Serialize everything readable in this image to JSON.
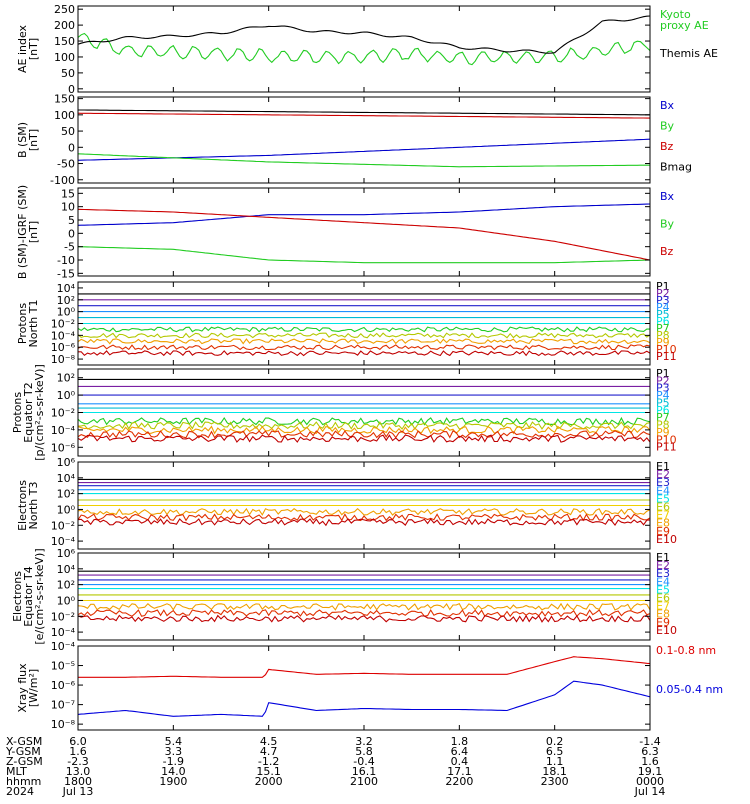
{
  "chart_data": [
    {
      "type": "line",
      "ylabel": "AE index\n[nT]",
      "ylim": [
        -10,
        260
      ],
      "yticks": [
        0,
        50,
        100,
        150,
        200,
        250
      ],
      "yticklabels": [
        "0",
        "50",
        "100",
        "150",
        "200",
        "250"
      ],
      "log": false,
      "x_hours": [
        18.0,
        18.5,
        19.0,
        19.5,
        20.0,
        20.5,
        21.0,
        21.5,
        22.0,
        22.5,
        23.0,
        23.5,
        24.0
      ],
      "series": [
        {
          "name": "Kyoto\nproxy AE",
          "color": "#22cc22",
          "y": [
            160,
            120,
            115,
            110,
            105,
            100,
            100,
            110,
            95,
            100,
            100,
            120,
            140
          ]
        },
        {
          "name": "Themis AE",
          "color": "#000000",
          "y": [
            140,
            160,
            165,
            175,
            200,
            180,
            175,
            160,
            130,
            120,
            115,
            210,
            225
          ]
        }
      ]
    },
    {
      "type": "line",
      "ylabel": "B (SM)\n[nT]",
      "ylim": [
        -110,
        155
      ],
      "yticks": [
        -100,
        -50,
        0,
        50,
        100,
        150
      ],
      "yticklabels": [
        "-100",
        "-50",
        "0",
        "50",
        "100",
        "150"
      ],
      "log": false,
      "x_hours": [
        18.0,
        20.0,
        22.0,
        24.0
      ],
      "series": [
        {
          "name": "Bx",
          "color": "#0000cc",
          "y": [
            -40,
            -25,
            0,
            25
          ]
        },
        {
          "name": "By",
          "color": "#22cc22",
          "y": [
            -20,
            -45,
            -60,
            -55
          ]
        },
        {
          "name": "Bz",
          "color": "#cc0000",
          "y": [
            105,
            100,
            95,
            90
          ]
        },
        {
          "name": "Bmag",
          "color": "#000000",
          "y": [
            115,
            110,
            105,
            100
          ]
        }
      ]
    },
    {
      "type": "line",
      "ylabel": "B (SM)-IGRF (SM)\n[nT]",
      "ylim": [
        -16,
        17
      ],
      "yticks": [
        -15,
        -10,
        -5,
        0,
        5,
        10,
        15
      ],
      "yticklabels": [
        "-15",
        "-10",
        "-5",
        "0",
        "5",
        "10",
        "15"
      ],
      "log": false,
      "x_hours": [
        18.0,
        19.0,
        20.0,
        21.0,
        22.0,
        23.0,
        24.0
      ],
      "series": [
        {
          "name": "Bx",
          "color": "#0000cc",
          "y": [
            3,
            4,
            7,
            7,
            8,
            10,
            11
          ]
        },
        {
          "name": "By",
          "color": "#22cc22",
          "y": [
            -5,
            -6,
            -10,
            -11,
            -11,
            -11,
            -10
          ]
        },
        {
          "name": "Bz",
          "color": "#cc0000",
          "y": [
            9,
            8,
            6,
            4,
            2,
            -3,
            -10
          ]
        }
      ]
    },
    {
      "type": "line",
      "ylabel": "Protons\nNorth T1",
      "ylim": [
        -9,
        5
      ],
      "yticks": [
        -8,
        -6,
        -4,
        -2,
        0,
        2,
        4
      ],
      "yticklabels": [
        "10⁻⁸",
        "10⁻⁶",
        "10⁻⁴",
        "10⁻²",
        "10⁰",
        "10²",
        "10⁴"
      ],
      "log": true,
      "x_hours": [
        18.0,
        24.0
      ],
      "series": [
        {
          "name": "P1",
          "color": "#000000",
          "y": [
            3,
            3
          ]
        },
        {
          "name": "P2",
          "color": "#7a1fa2",
          "y": [
            2,
            2
          ]
        },
        {
          "name": "P3",
          "color": "#2222cc",
          "y": [
            1,
            1
          ]
        },
        {
          "name": "P4",
          "color": "#1e90ff",
          "y": [
            0,
            0
          ]
        },
        {
          "name": "P5",
          "color": "#00bcd4",
          "y": [
            -1,
            -1
          ]
        },
        {
          "name": "P6",
          "color": "#00e5e5",
          "y": [
            -2,
            -2
          ]
        },
        {
          "name": "P7",
          "color": "#22cc22",
          "y": [
            -3,
            -3
          ]
        },
        {
          "name": "P8",
          "color": "#b5c800",
          "y": [
            -4,
            -4
          ]
        },
        {
          "name": "P9",
          "color": "#f0a000",
          "y": [
            -5,
            -5
          ]
        },
        {
          "name": "P10",
          "color": "#e03000",
          "y": [
            -6,
            -6
          ]
        },
        {
          "name": "P11",
          "color": "#c00000",
          "y": [
            -7,
            -7
          ]
        }
      ]
    },
    {
      "type": "line",
      "ylabel": "Protons\nEquator T2\n[p/(cm²-s-sr-keV)]",
      "ylim": [
        -7,
        3
      ],
      "yticks": [
        -6,
        -4,
        -2,
        0,
        2
      ],
      "yticklabels": [
        "10⁻⁶",
        "10⁻⁴",
        "10⁻²",
        "10⁰",
        "10²"
      ],
      "log": true,
      "x_hours": [
        18.0,
        24.0
      ],
      "series": [
        {
          "name": "P1",
          "color": "#000000",
          "y": [
            1.8,
            1.8
          ]
        },
        {
          "name": "P2",
          "color": "#7a1fa2",
          "y": [
            1,
            1
          ]
        },
        {
          "name": "P3",
          "color": "#2222cc",
          "y": [
            0,
            0
          ]
        },
        {
          "name": "P4",
          "color": "#1e90ff",
          "y": [
            -1,
            -1
          ]
        },
        {
          "name": "P5",
          "color": "#00bcd4",
          "y": [
            -1.5,
            -1.5
          ]
        },
        {
          "name": "P6",
          "color": "#00e5e5",
          "y": [
            -2,
            -2
          ]
        },
        {
          "name": "P7",
          "color": "#22cc22",
          "y": [
            -3,
            -3
          ]
        },
        {
          "name": "P8",
          "color": "#b5c800",
          "y": [
            -3.5,
            -3.5
          ]
        },
        {
          "name": "P9",
          "color": "#f0a000",
          "y": [
            -4,
            -4
          ]
        },
        {
          "name": "P10",
          "color": "#e03000",
          "y": [
            -4.5,
            -4.5
          ]
        },
        {
          "name": "P11",
          "color": "#c00000",
          "y": [
            -5,
            -5
          ]
        }
      ]
    },
    {
      "type": "line",
      "ylabel": "Electrons\nNorth T3",
      "ylim": [
        -5,
        6
      ],
      "yticks": [
        -4,
        -2,
        0,
        2,
        4,
        6
      ],
      "yticklabels": [
        "10⁻⁴",
        "10⁻²",
        "10⁰",
        "10²",
        "10⁴",
        "10⁶"
      ],
      "log": true,
      "x_hours": [
        18.0,
        24.0
      ],
      "series": [
        {
          "name": "E1",
          "color": "#000000",
          "y": [
            3.8,
            3.8
          ]
        },
        {
          "name": "E2",
          "color": "#7a1fa2",
          "y": [
            3.4,
            3.4
          ]
        },
        {
          "name": "E3",
          "color": "#2222cc",
          "y": [
            3,
            3
          ]
        },
        {
          "name": "E4",
          "color": "#1e90ff",
          "y": [
            2.5,
            2.5
          ]
        },
        {
          "name": "E5",
          "color": "#00e5e5",
          "y": [
            2,
            2
          ]
        },
        {
          "name": "E6",
          "color": "#b5c800",
          "y": [
            1.2,
            1.2
          ]
        },
        {
          "name": "E7",
          "color": "#f0d000",
          "y": [
            0.5,
            0.5
          ]
        },
        {
          "name": "E8",
          "color": "#f0a000",
          "y": [
            -0.3,
            -0.3
          ]
        },
        {
          "name": "E9",
          "color": "#e03000",
          "y": [
            -1,
            -1
          ]
        },
        {
          "name": "E10",
          "color": "#c00000",
          "y": [
            -1.6,
            -1.6
          ]
        }
      ]
    },
    {
      "type": "line",
      "ylabel": "Electrons\nEquator T4\n[e/(cm²-s-sr-keV)]",
      "ylim": [
        -5,
        6
      ],
      "yticks": [
        -4,
        -2,
        0,
        2,
        4,
        6
      ],
      "yticklabels": [
        "10⁻⁴",
        "10⁻²",
        "10⁰",
        "10²",
        "10⁴",
        "10⁶"
      ],
      "log": true,
      "x_hours": [
        18.0,
        24.0
      ],
      "series": [
        {
          "name": "E1",
          "color": "#000000",
          "y": [
            3.7,
            3.7
          ]
        },
        {
          "name": "E2",
          "color": "#7a1fa2",
          "y": [
            3.2,
            3.2
          ]
        },
        {
          "name": "E3",
          "color": "#2222cc",
          "y": [
            2.6,
            2.6
          ]
        },
        {
          "name": "E4",
          "color": "#1e90ff",
          "y": [
            2,
            2
          ]
        },
        {
          "name": "E5",
          "color": "#00e5e5",
          "y": [
            1.5,
            1.5
          ]
        },
        {
          "name": "E6",
          "color": "#b5c800",
          "y": [
            0.7,
            0.7
          ]
        },
        {
          "name": "E7",
          "color": "#f0d000",
          "y": [
            0,
            0
          ]
        },
        {
          "name": "E8",
          "color": "#f0a000",
          "y": [
            -0.8,
            -0.8
          ]
        },
        {
          "name": "E9",
          "color": "#e03000",
          "y": [
            -1.6,
            -1.6
          ]
        },
        {
          "name": "E10",
          "color": "#c00000",
          "y": [
            -2.3,
            -2.3
          ]
        }
      ]
    },
    {
      "type": "line",
      "ylabel": "Xray flux\n[W/m²]",
      "ylim": [
        -8.3,
        -4
      ],
      "yticks": [
        -8,
        -7,
        -6,
        -5,
        -4
      ],
      "yticklabels": [
        "10⁻⁸",
        "10⁻⁷",
        "10⁻⁶",
        "10⁻⁵",
        "10⁻⁴"
      ],
      "log": true,
      "x_hours": [
        18.0,
        18.5,
        19.0,
        19.5,
        19.95,
        20.0,
        20.5,
        21.0,
        21.5,
        22.0,
        22.5,
        23.0,
        23.2,
        23.5,
        24.0
      ],
      "series": [
        {
          "name": "0.1-0.8 nm",
          "color": "#dd0000",
          "y": [
            -5.6,
            -5.6,
            -5.55,
            -5.6,
            -5.6,
            -5.2,
            -5.45,
            -5.4,
            -5.45,
            -5.45,
            -5.45,
            -4.8,
            -4.55,
            -4.65,
            -4.9
          ]
        },
        {
          "name": "0.05-0.4 nm",
          "color": "#0000dd",
          "y": [
            -7.5,
            -7.3,
            -7.6,
            -7.5,
            -7.6,
            -6.9,
            -7.3,
            -7.2,
            -7.25,
            -7.25,
            -7.3,
            -6.5,
            -5.8,
            -6.0,
            -6.6
          ]
        }
      ]
    }
  ],
  "xaxis": {
    "hour_start": 18.0,
    "hour_end": 24.0,
    "tick_hours": [
      18,
      19,
      20,
      21,
      22,
      23,
      24
    ],
    "row_labels": [
      "X-GSM",
      "Y-GSM",
      "Z-GSM",
      "MLT",
      "hhmm",
      "2024"
    ],
    "rows": [
      [
        "6.0",
        "5.4",
        "4.5",
        "3.2",
        "1.8",
        "0.2",
        "-1.4"
      ],
      [
        "1.6",
        "3.3",
        "4.7",
        "5.8",
        "6.4",
        "6.5",
        "6.3"
      ],
      [
        "-2.3",
        "-1.9",
        "-1.2",
        "-0.4",
        "0.4",
        "1.1",
        "1.6"
      ],
      [
        "13.0",
        "14.0",
        "15.1",
        "16.1",
        "17.1",
        "18.1",
        "19.1"
      ],
      [
        "1800",
        "1900",
        "2000",
        "2100",
        "2200",
        "2300",
        "0000"
      ],
      [
        "Jul 13",
        "",
        "",
        "",
        "",
        "",
        "Jul 14"
      ]
    ]
  }
}
